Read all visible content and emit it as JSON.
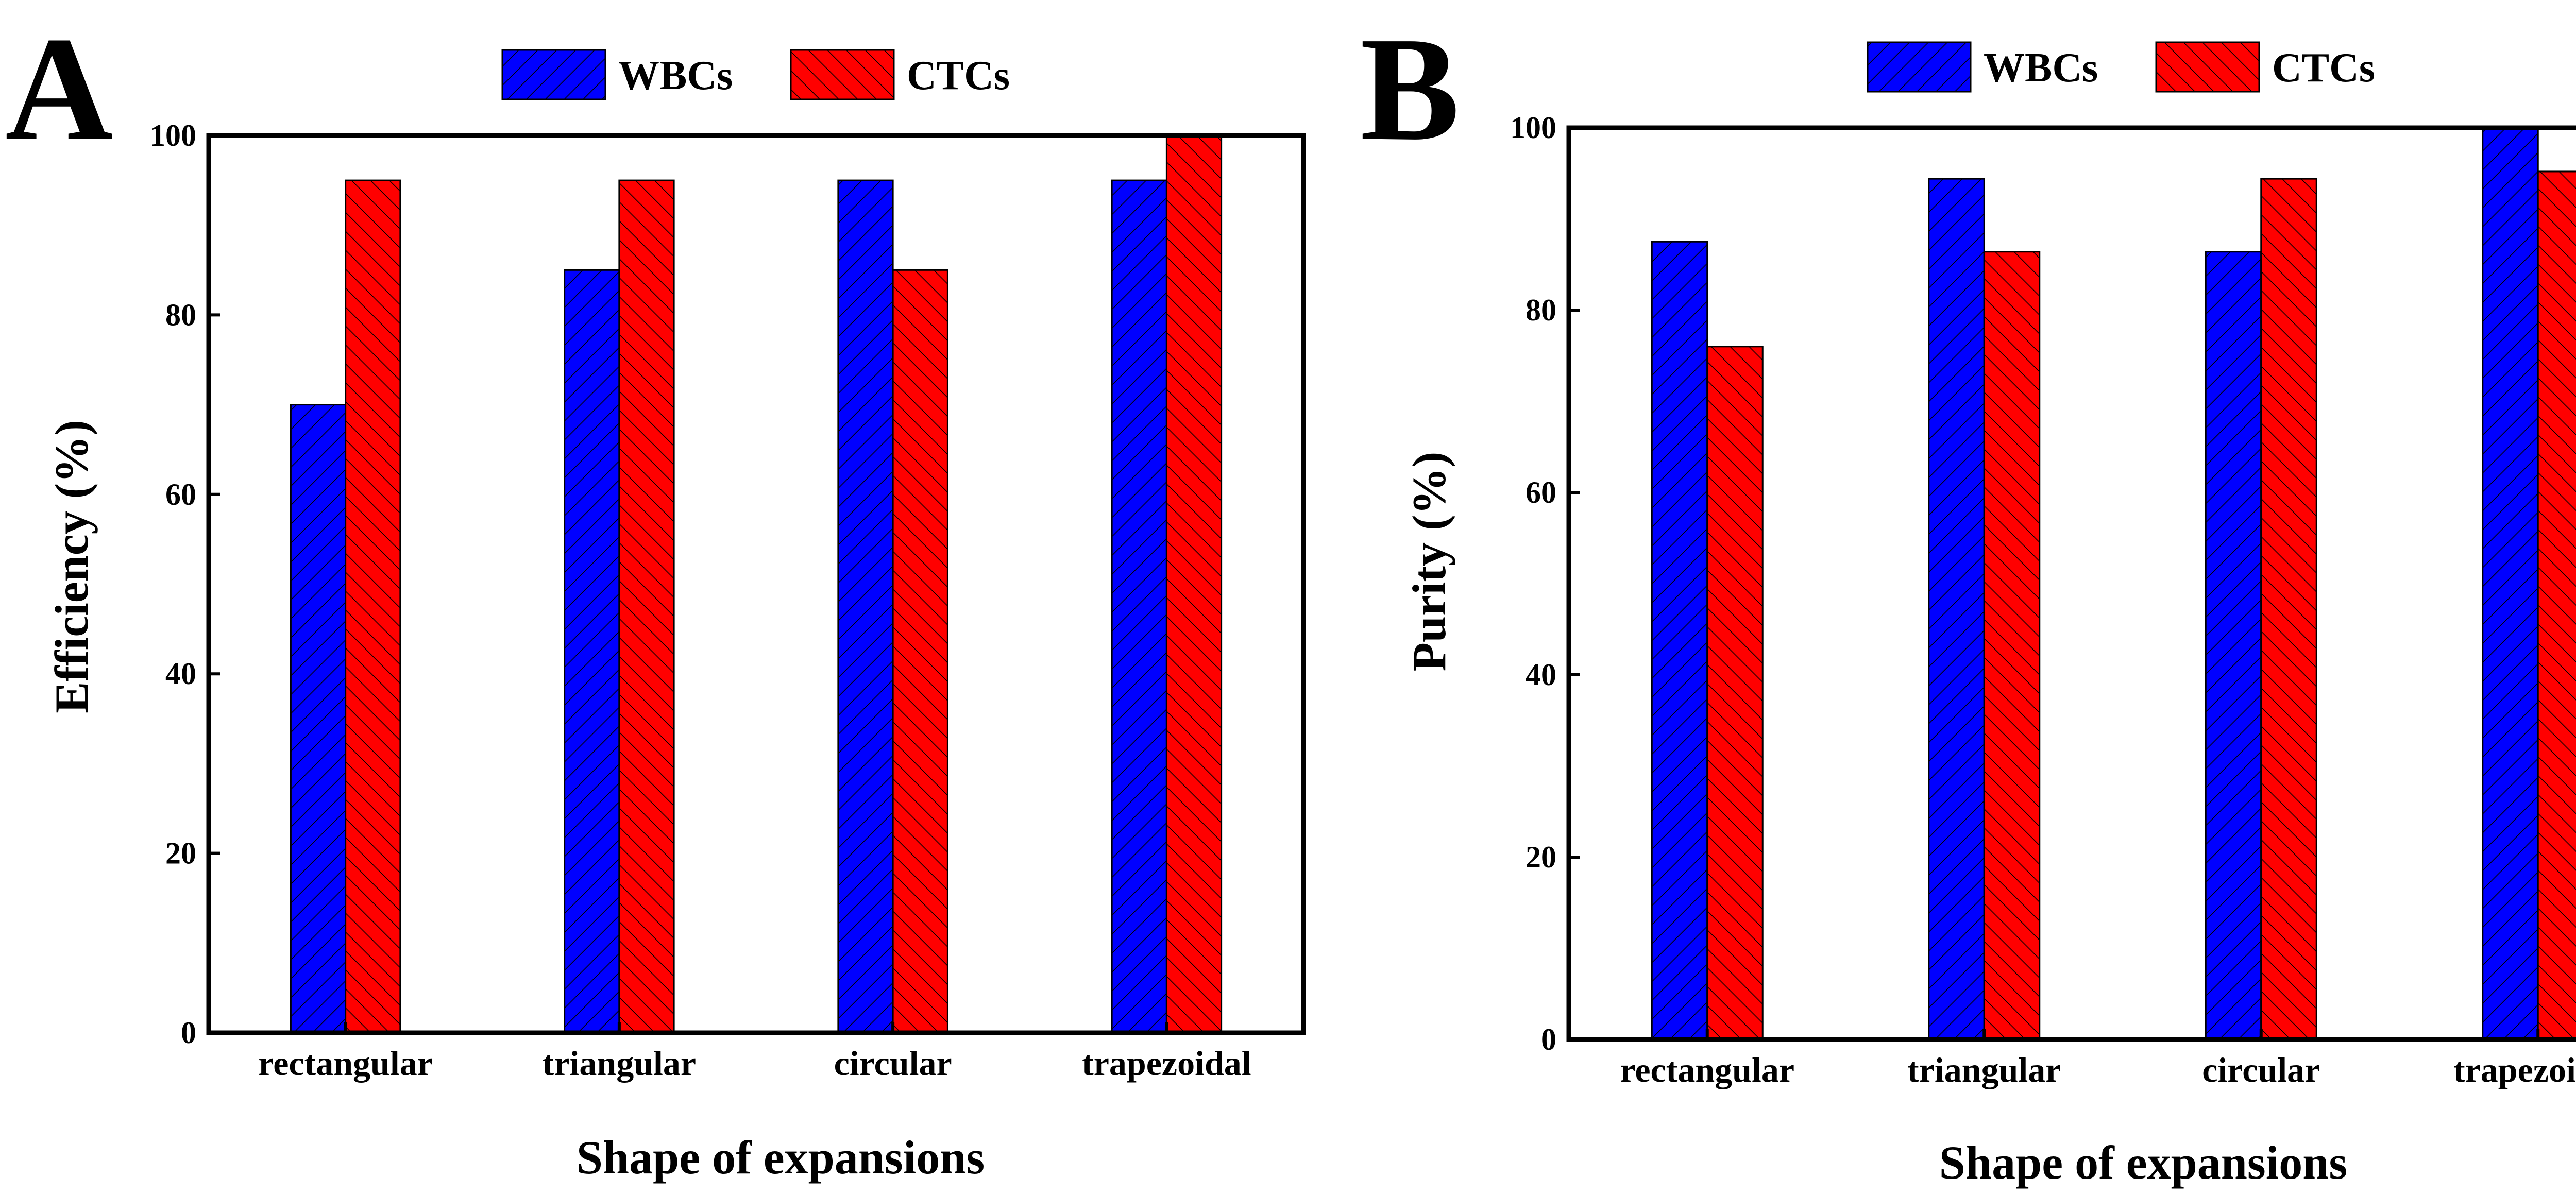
{
  "colors": {
    "wbc": "#0000ff",
    "ctc": "#ff0000",
    "axis": "#000000"
  },
  "legend": [
    {
      "name": "WBCs",
      "color": "#0000ff",
      "hatch": "forward"
    },
    {
      "name": "CTCs",
      "color": "#ff0000",
      "hatch": "back"
    }
  ],
  "chart_data": [
    {
      "type": "bar",
      "panel": "A",
      "xlabel": "Shape of expansions",
      "ylabel": "Efficiency (%)",
      "categories": [
        "rectangular",
        "triangular",
        "circular",
        "trapezoidal"
      ],
      "series": [
        {
          "name": "WBCs",
          "values": [
            70,
            85,
            95,
            95
          ]
        },
        {
          "name": "CTCs",
          "values": [
            95,
            95,
            85,
            100
          ]
        }
      ],
      "ylim": [
        0,
        100
      ],
      "yticks": [
        0,
        20,
        40,
        60,
        80,
        100
      ],
      "grid": false,
      "legend_position": "top-center"
    },
    {
      "type": "bar",
      "panel": "B",
      "xlabel": "Shape of expansions",
      "ylabel": "Purity (%)",
      "categories": [
        "rectangular",
        "triangular",
        "circular",
        "trapezoidal"
      ],
      "series": [
        {
          "name": "WBCs",
          "values": [
            87.5,
            94.4,
            86.4,
            100
          ]
        },
        {
          "name": "CTCs",
          "values": [
            76,
            86.4,
            94.4,
            95.2
          ]
        }
      ],
      "ylim": [
        0,
        100
      ],
      "yticks": [
        0,
        20,
        40,
        60,
        80,
        100
      ],
      "grid": false,
      "legend_position": "top-center"
    }
  ]
}
